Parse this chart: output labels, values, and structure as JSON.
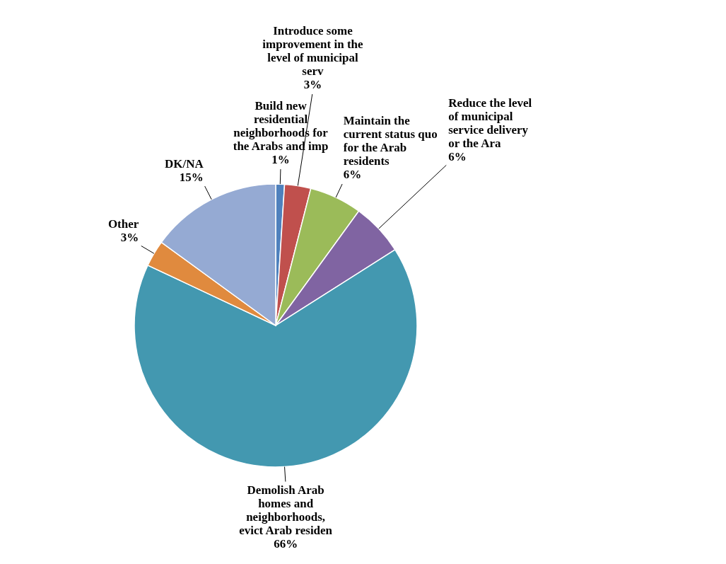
{
  "chart_data": {
    "type": "pie",
    "categories": [
      "Build new residential neighborhoods for the Arabs and imp",
      "Introduce some improvement in the level of municipal serv",
      "Maintain the current status quo for the Arab residents",
      "Reduce the level of municipal service delivery or the Ara",
      "Demolish Arab homes and neighborhoods, evict Arab residen",
      "Other",
      "DK/NA"
    ],
    "values": [
      1,
      3,
      6,
      6,
      66,
      3,
      15
    ],
    "value_labels": [
      "1%",
      "3%",
      "6%",
      "6%",
      "66%",
      "3%",
      "15%"
    ],
    "colors": [
      "#4f81bd",
      "#c0504d",
      "#9bbb59",
      "#8064a2",
      "#4398b0",
      "#e08a3e",
      "#95aad3"
    ]
  }
}
